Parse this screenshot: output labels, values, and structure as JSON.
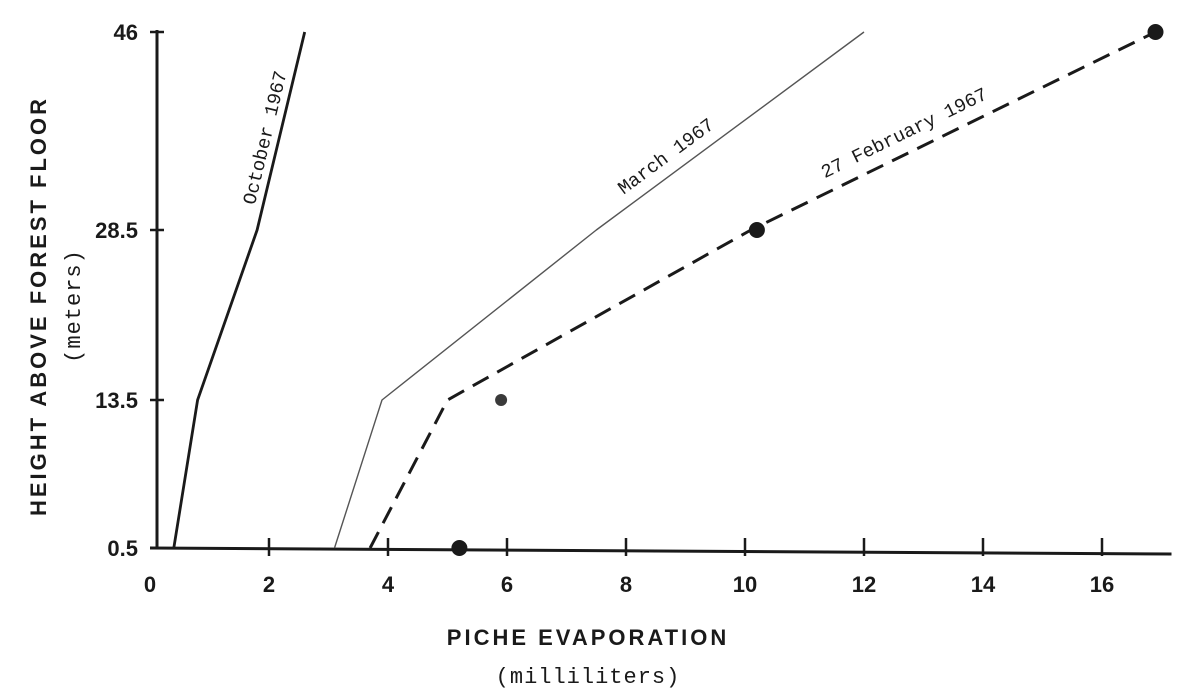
{
  "chart_data": {
    "type": "line",
    "xlabel": "PICHE EVAPORATION",
    "xlabel_units": "(milliliters)",
    "ylabel": "HEIGHT ABOVE FOREST FLOOR",
    "ylabel_units": "(meters)",
    "x_ticks": [
      "0",
      "2",
      "4",
      "6",
      "8",
      "10",
      "12",
      "14",
      "16"
    ],
    "y_ticks": [
      "0.5",
      "13.5",
      "28.5",
      "46"
    ],
    "xlim": [
      0,
      17
    ],
    "y_levels": [
      0.5,
      13.5,
      28.5,
      46
    ],
    "grid": false,
    "series": [
      {
        "name": "October 1967",
        "style": "solid-bold",
        "color": "#1a1a1a",
        "points": [
          {
            "x": 0.4,
            "y": 0.5
          },
          {
            "x": 0.8,
            "y": 13.5
          },
          {
            "x": 1.8,
            "y": 28.5
          },
          {
            "x": 2.6,
            "y": 46
          }
        ]
      },
      {
        "name": "March 1967",
        "style": "solid-thin",
        "color": "#555555",
        "points": [
          {
            "x": 3.1,
            "y": 0.5
          },
          {
            "x": 3.9,
            "y": 13.5
          },
          {
            "x": 7.5,
            "y": 28.5
          },
          {
            "x": 12.0,
            "y": 46
          }
        ]
      },
      {
        "name": "27 February 1967",
        "style": "dashed-bold",
        "color": "#1a1a1a",
        "points": [
          {
            "x": 3.7,
            "y": 0.5
          },
          {
            "x": 5.0,
            "y": 13.5
          },
          {
            "x": 10.1,
            "y": 28.5
          },
          {
            "x": 16.9,
            "y": 46
          }
        ]
      }
    ],
    "markers": [
      {
        "x": 5.2,
        "y": 0.5,
        "size": "large"
      },
      {
        "x": 5.9,
        "y": 13.5,
        "size": "small"
      },
      {
        "x": 10.2,
        "y": 28.5,
        "size": "large"
      },
      {
        "x": 16.9,
        "y": 46,
        "size": "large"
      }
    ]
  }
}
